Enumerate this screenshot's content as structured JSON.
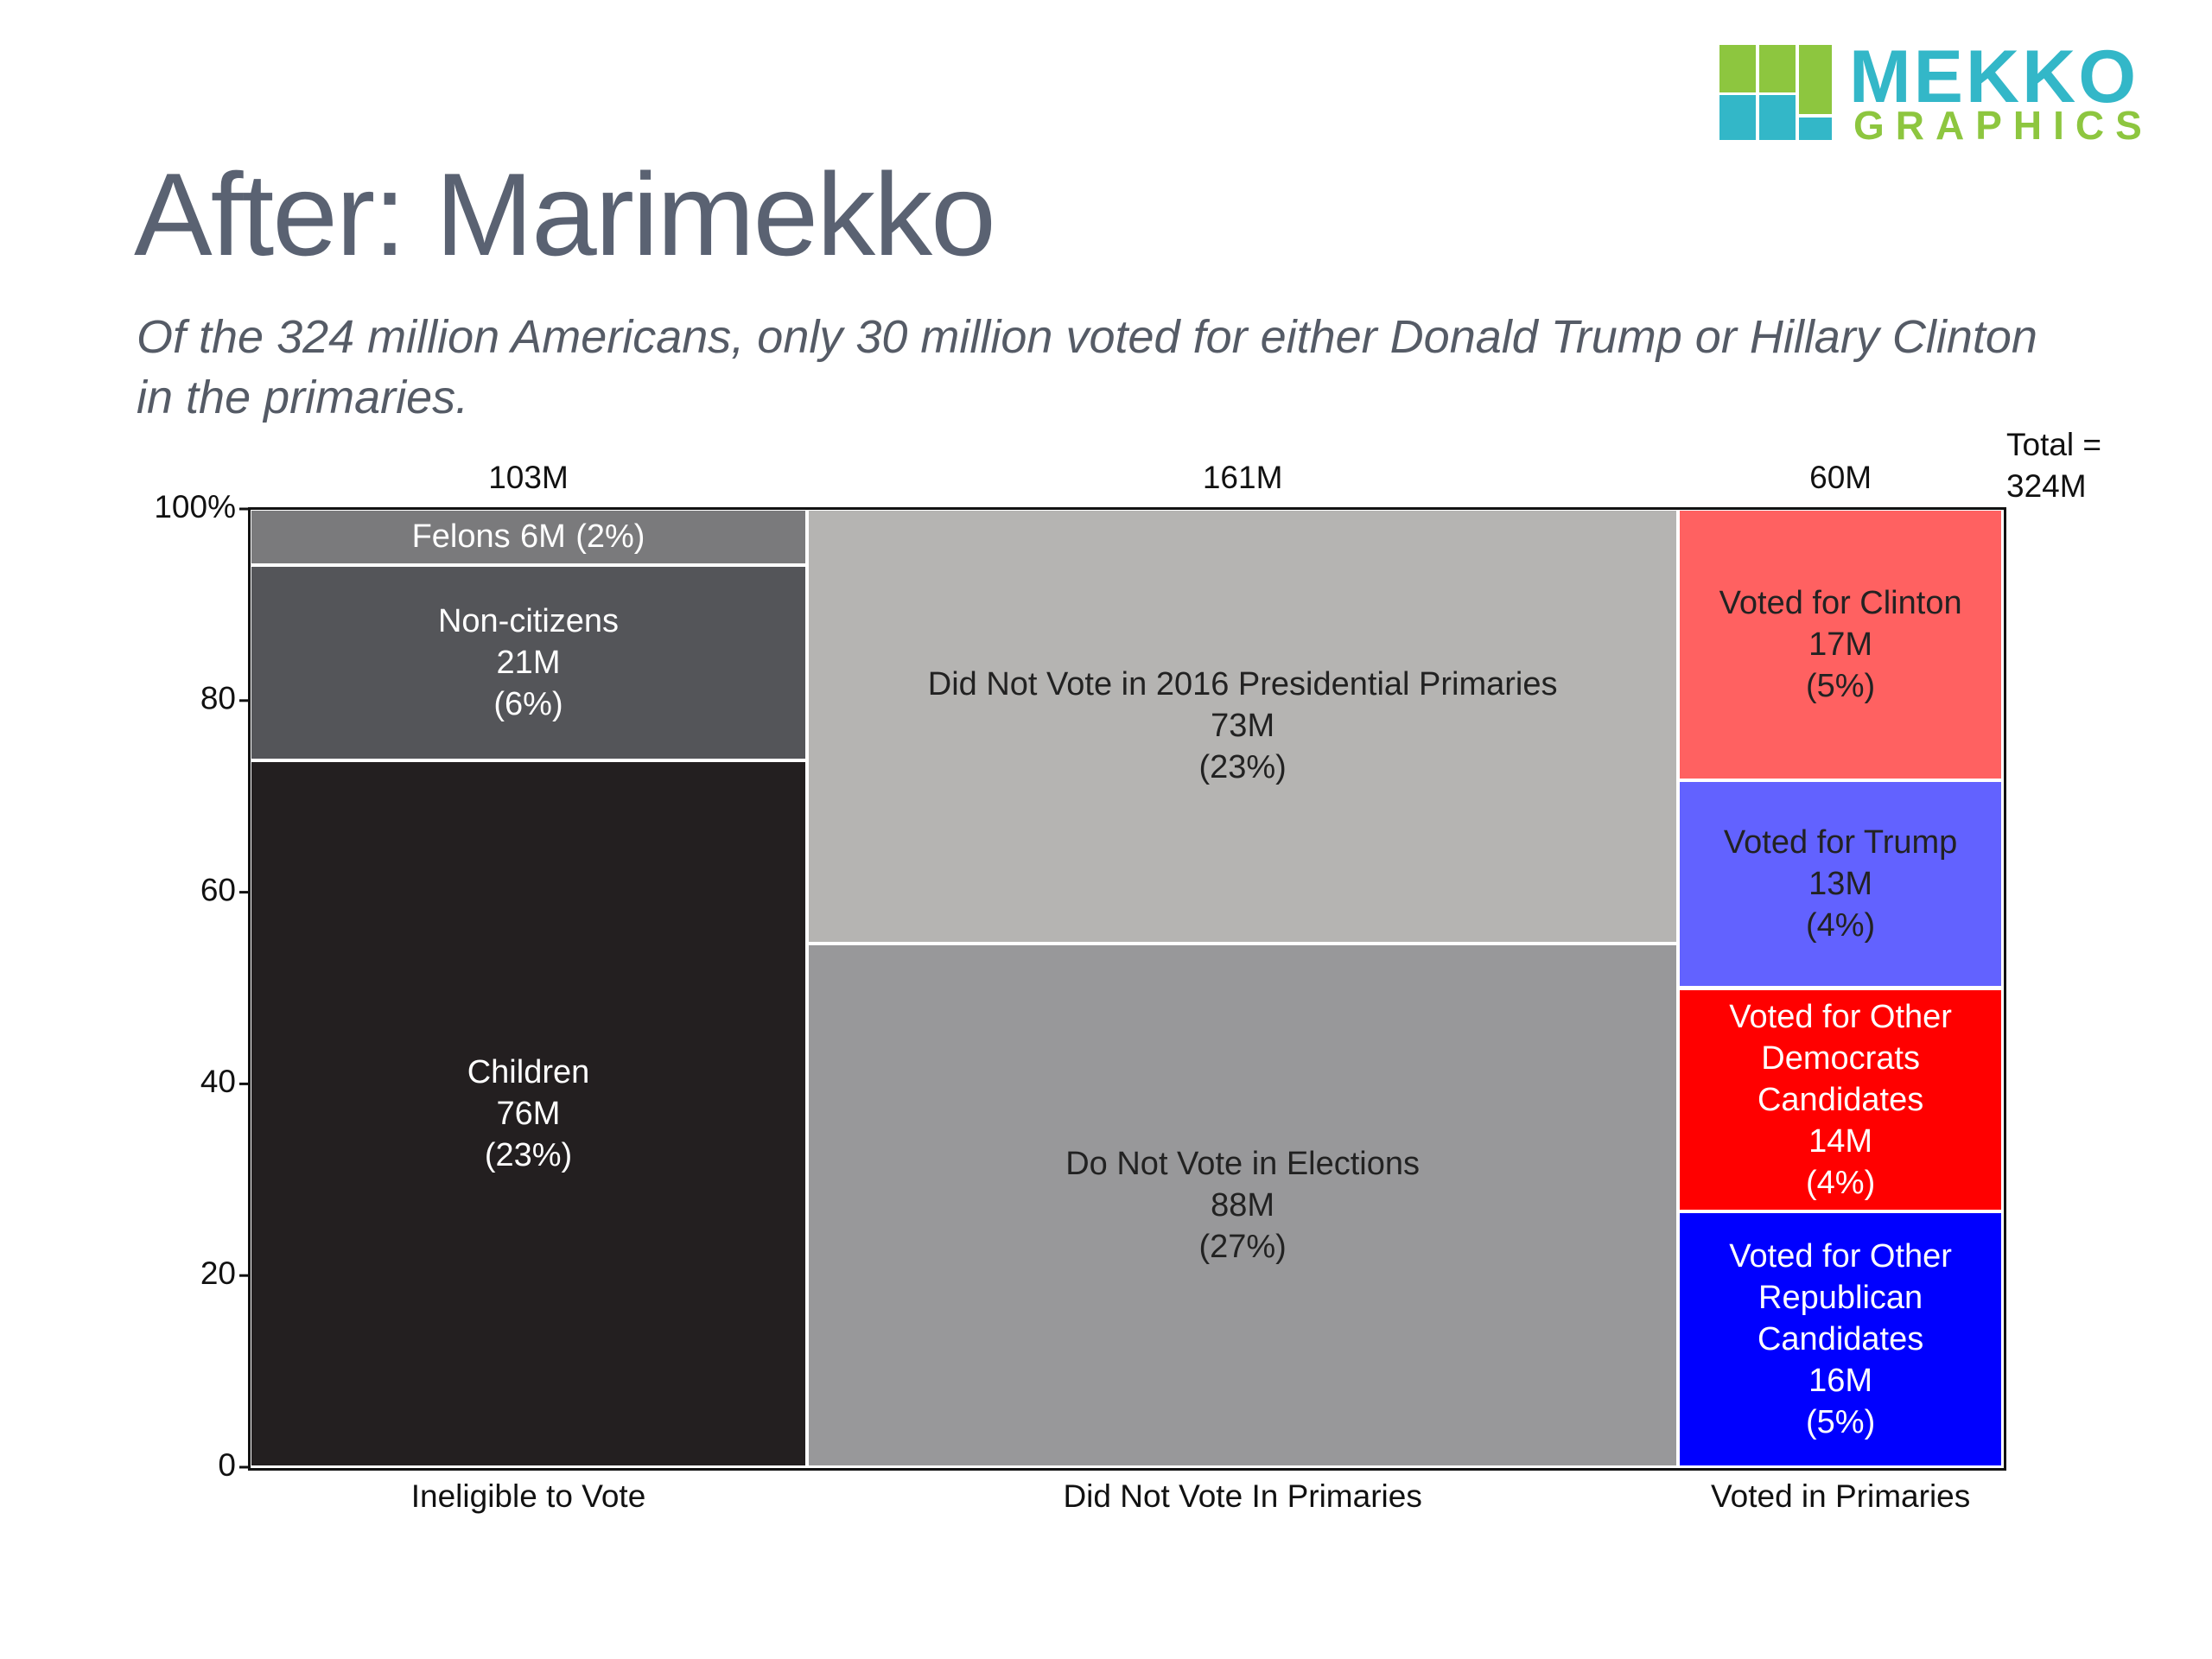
{
  "logo": {
    "line1": "MEKKO",
    "line2": "GRAPHICS"
  },
  "chart_data": {
    "type": "marimekko",
    "title": "After: Marimekko",
    "subtitle": "Of the 324 million Americans, only 30 million voted for either Donald Trump or Hillary Clinton in the primaries.",
    "total_label": "Total =",
    "total": 324,
    "total_value_label": "324M",
    "ylim": [
      0,
      100
    ],
    "yticks": [
      0,
      20,
      40,
      60,
      80,
      {
        "value": 100,
        "label": "100%"
      }
    ],
    "columns": [
      {
        "name": "Ineligible to Vote",
        "width": 103,
        "width_label": "103M",
        "segments": [
          {
            "name": "Children",
            "value": 76,
            "value_label": "76M",
            "share": 23,
            "share_label": "(23%)",
            "color": "#231f20",
            "label_color": "#ffffff"
          },
          {
            "name": "Non-citizens",
            "value": 21,
            "value_label": "21M",
            "share": 6,
            "share_label": "(6%)",
            "color": "#545559",
            "label_color": "#ffffff"
          },
          {
            "name": "Felons",
            "value": 6,
            "value_label": "6M",
            "share": 2,
            "share_label": "(2%)",
            "color": "#7a7a7c",
            "label_color": "#ffffff"
          }
        ]
      },
      {
        "name": "Did Not Vote In Primaries",
        "width": 161,
        "width_label": "161M",
        "segments": [
          {
            "name": "Do Not Vote in Elections",
            "value": 88,
            "value_label": "88M",
            "share": 27,
            "share_label": "(27%)",
            "color": "#98989a",
            "label_color": "#222222"
          },
          {
            "name": "Did Not Vote in 2016 Presidential Primaries",
            "value": 73,
            "value_label": "73M",
            "share": 23,
            "share_label": "(23%)",
            "color": "#b5b4b2",
            "label_color": "#222222"
          }
        ]
      },
      {
        "name": "Voted in Primaries",
        "width": 60,
        "width_label": "60M",
        "segments": [
          {
            "name": "Voted for Other Republican Candidates",
            "value": 16,
            "value_label": "16M",
            "share": 5,
            "share_label": "(5%)",
            "color": "#0000ff",
            "label_color": "#ffffff"
          },
          {
            "name": "Voted for Other Democrats Candidates",
            "value": 14,
            "value_label": "14M",
            "share": 4,
            "share_label": "(4%)",
            "color": "#ff0000",
            "label_color": "#ffffff"
          },
          {
            "name": "Voted for Trump",
            "value": 13,
            "value_label": "13M",
            "share": 4,
            "share_label": "(4%)",
            "color": "#6262ff",
            "label_color": "#222222"
          },
          {
            "name": "Voted for Clinton",
            "value": 17,
            "value_label": "17M",
            "share": 5,
            "share_label": "(5%)",
            "color": "#ff6161",
            "label_color": "#222222"
          }
        ]
      }
    ]
  }
}
